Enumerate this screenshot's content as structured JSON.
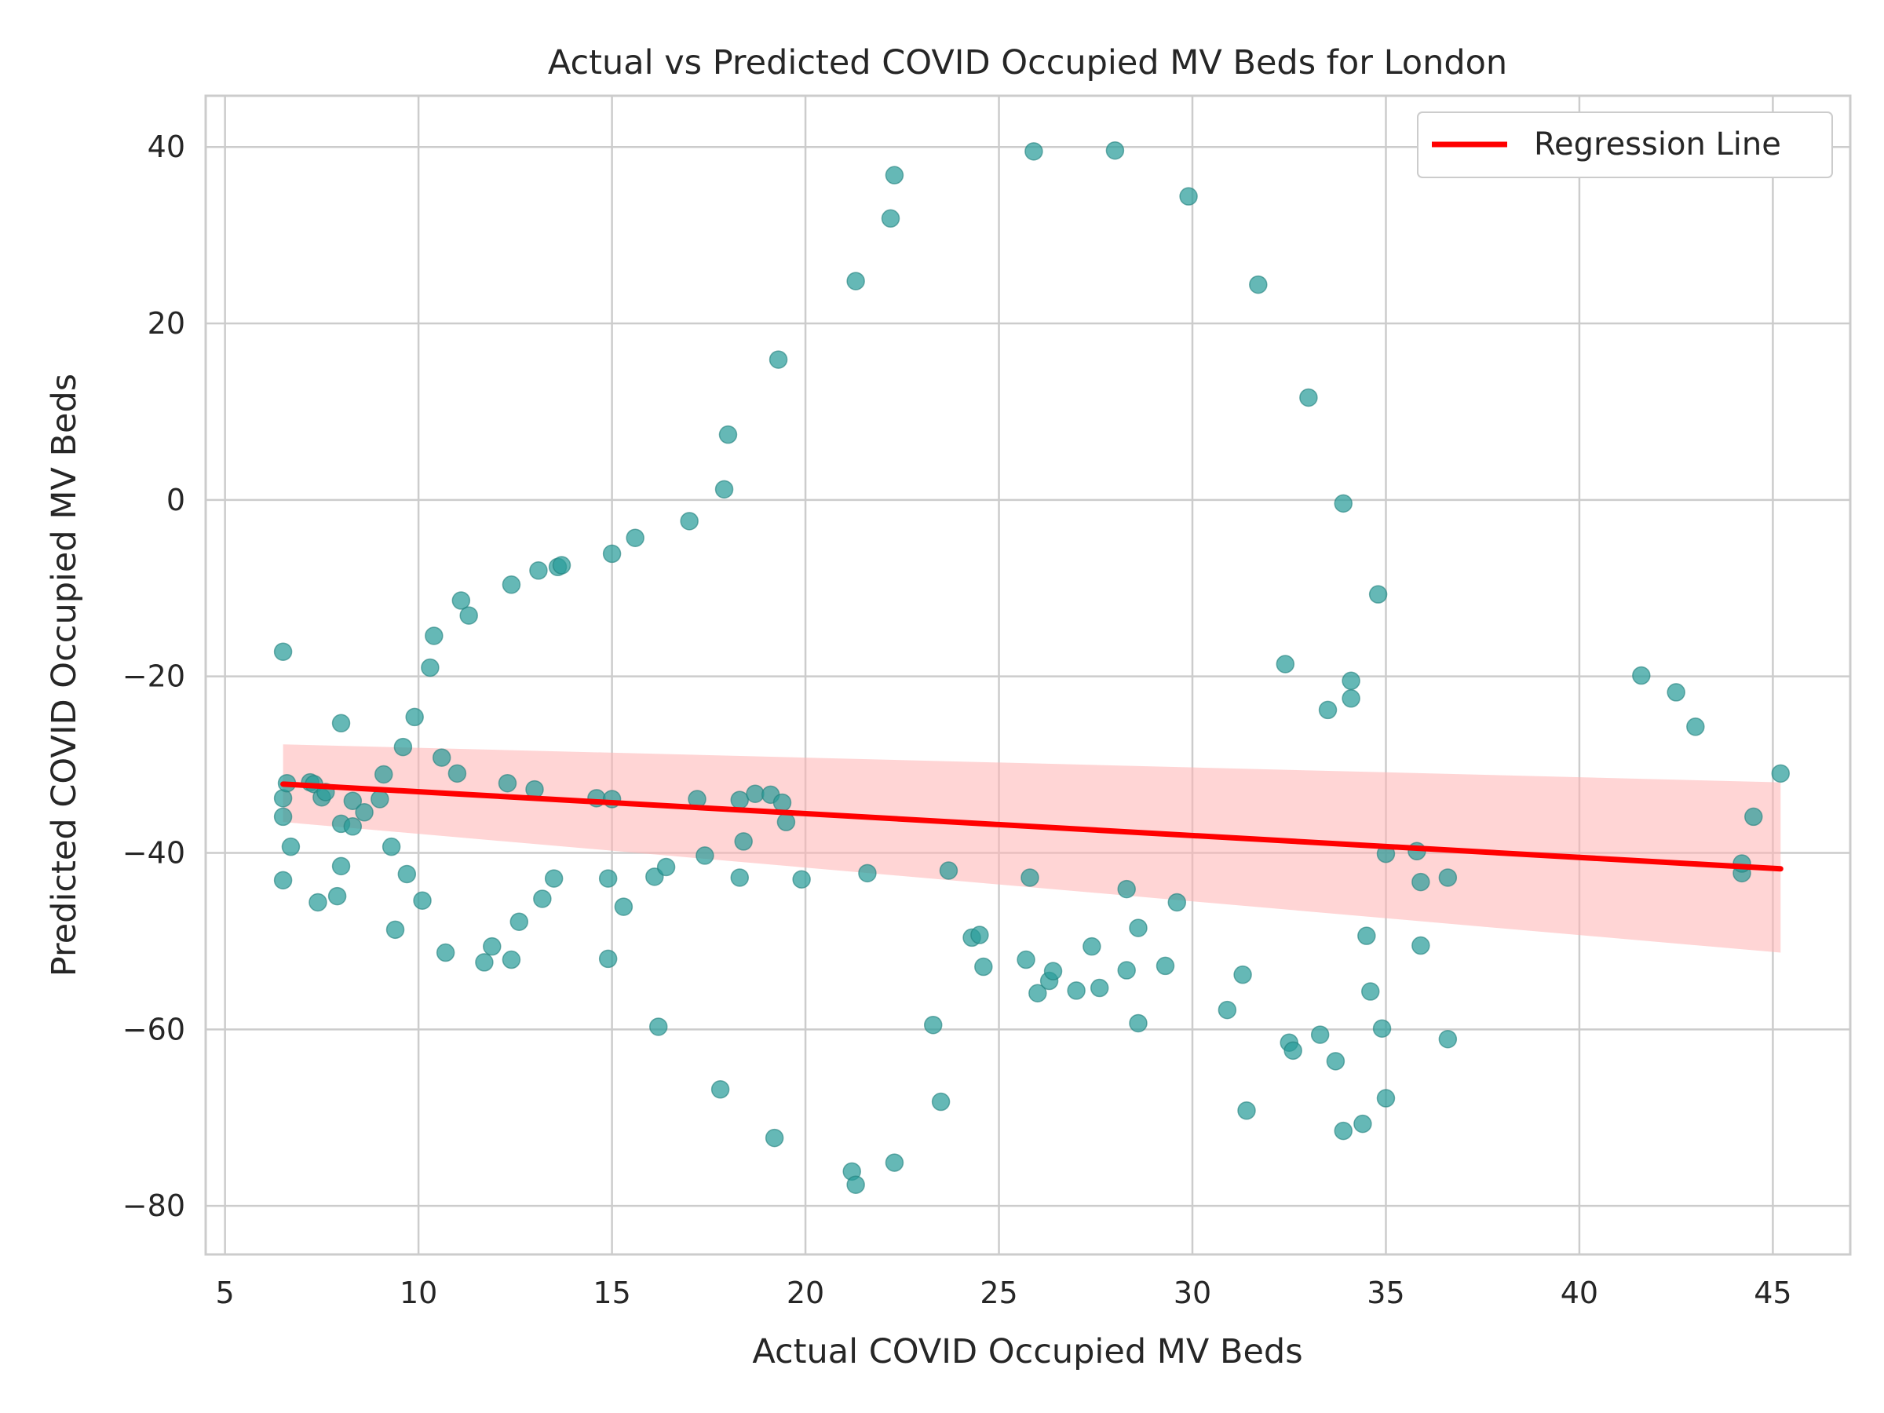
{
  "chart_data": {
    "type": "scatter",
    "title": "Actual vs Predicted COVID Occupied MV Beds for London",
    "xlabel": "Actual COVID Occupied MV Beds",
    "ylabel": "Predicted COVID Occupied MV Beds",
    "xlim": [
      4.5,
      47.0
    ],
    "ylim": [
      -85.5,
      45.8
    ],
    "xticks": [
      5,
      10,
      15,
      20,
      25,
      30,
      35,
      40,
      45
    ],
    "yticks": [
      40,
      20,
      0,
      -20,
      -40,
      -60,
      -80
    ],
    "xtick_labels": [
      "5",
      "10",
      "15",
      "20",
      "25",
      "30",
      "35",
      "40",
      "45"
    ],
    "ytick_labels": [
      "40",
      "20",
      "0",
      "−20",
      "−40",
      "−60",
      "−80"
    ],
    "grid": true,
    "legend_position": "top-right",
    "point_color": "#2a9d9a",
    "line_color": "#ff0000",
    "band_color": "#ffb3b3",
    "series": [
      {
        "kind": "points",
        "x": [
          6.5,
          6.5,
          6.5,
          6.5,
          6.6,
          6.7,
          7.2,
          7.3,
          7.4,
          7.5,
          7.6,
          7.9,
          8.0,
          8.0,
          8.0,
          8.3,
          8.3,
          8.6,
          9.0,
          9.1,
          9.3,
          9.4,
          9.6,
          9.7,
          9.9,
          10.1,
          10.3,
          10.4,
          10.6,
          10.7,
          11.0,
          11.1,
          11.3,
          11.7,
          11.9,
          12.3,
          12.4,
          12.4,
          12.6,
          13.0,
          13.1,
          13.2,
          13.5,
          13.6,
          13.7,
          14.6,
          14.9,
          14.9,
          15.0,
          15.0,
          15.3,
          15.6,
          16.1,
          16.2,
          16.4,
          17.0,
          17.2,
          17.4,
          17.8,
          17.9,
          18.0,
          18.3,
          18.3,
          18.4,
          18.7,
          19.1,
          19.2,
          19.3,
          19.4,
          19.5,
          19.9,
          21.2,
          21.3,
          21.3,
          21.6,
          22.2,
          22.3,
          22.3,
          23.3,
          23.5,
          23.7,
          24.3,
          24.5,
          24.6,
          25.7,
          25.8,
          25.9,
          26.0,
          26.3,
          26.4,
          27.0,
          27.4,
          27.6,
          28.0,
          28.3,
          28.3,
          28.6,
          28.6,
          29.3,
          29.6,
          29.9,
          30.9,
          31.3,
          31.4,
          31.7,
          32.4,
          32.5,
          32.6,
          33.0,
          33.3,
          33.5,
          33.7,
          33.9,
          33.9,
          34.1,
          34.1,
          34.4,
          34.5,
          34.6,
          34.8,
          34.9,
          35.0,
          35.0,
          35.8,
          35.9,
          35.9,
          36.6,
          36.6,
          41.6,
          42.5,
          43.0,
          44.2,
          44.2,
          44.5,
          45.2
        ],
        "y": [
          -17.2,
          -33.8,
          -35.9,
          -43.1,
          -32.1,
          -39.3,
          -32.0,
          -32.2,
          -45.6,
          -33.7,
          -33.1,
          -44.9,
          -25.3,
          -36.7,
          -41.5,
          -34.1,
          -37.0,
          -35.4,
          -33.9,
          -31.1,
          -39.3,
          -48.7,
          -28.0,
          -42.4,
          -24.6,
          -45.4,
          -19.0,
          -15.4,
          -29.2,
          -51.3,
          -31.0,
          -11.4,
          -13.1,
          -52.4,
          -50.6,
          -32.1,
          -52.1,
          -9.6,
          -47.8,
          -32.8,
          -8.0,
          -45.2,
          -42.9,
          -7.6,
          -7.4,
          -33.8,
          -42.9,
          -52.0,
          -6.1,
          -33.9,
          -46.1,
          -4.3,
          -42.7,
          -59.7,
          -41.6,
          -2.4,
          -33.9,
          -40.3,
          -66.8,
          1.2,
          7.4,
          -34.0,
          -42.8,
          -38.7,
          -33.3,
          -33.4,
          -72.3,
          15.9,
          -34.3,
          -36.5,
          -43.0,
          -76.1,
          24.8,
          -77.6,
          -42.3,
          31.9,
          -75.1,
          36.8,
          -59.5,
          -68.2,
          -42.0,
          -49.6,
          -49.3,
          -52.9,
          -52.1,
          -42.8,
          39.5,
          -55.9,
          -54.5,
          -53.4,
          -55.6,
          -50.6,
          -55.3,
          39.6,
          -53.3,
          -44.1,
          -59.3,
          -48.5,
          -52.8,
          -45.6,
          34.4,
          -57.8,
          -53.8,
          -69.2,
          24.4,
          -18.6,
          -61.5,
          -62.4,
          11.6,
          -60.6,
          -23.8,
          -63.6,
          -0.4,
          -71.5,
          -20.5,
          -22.5,
          -70.7,
          -49.4,
          -55.7,
          -10.7,
          -59.9,
          -40.1,
          -67.8,
          -39.8,
          -43.3,
          -50.5,
          -61.1,
          -42.8,
          -19.9,
          -21.8,
          -25.7,
          -42.3,
          -41.2,
          -35.9,
          -31.0
        ]
      },
      {
        "kind": "line",
        "name": "Regression Line",
        "x": [
          6.5,
          45.2
        ],
        "y": [
          -32.2,
          -41.8
        ]
      },
      {
        "kind": "band",
        "x": [
          6.5,
          45.2
        ],
        "upper": [
          -27.7,
          -32.0
        ],
        "lower": [
          -36.5,
          -51.3
        ]
      }
    ]
  }
}
